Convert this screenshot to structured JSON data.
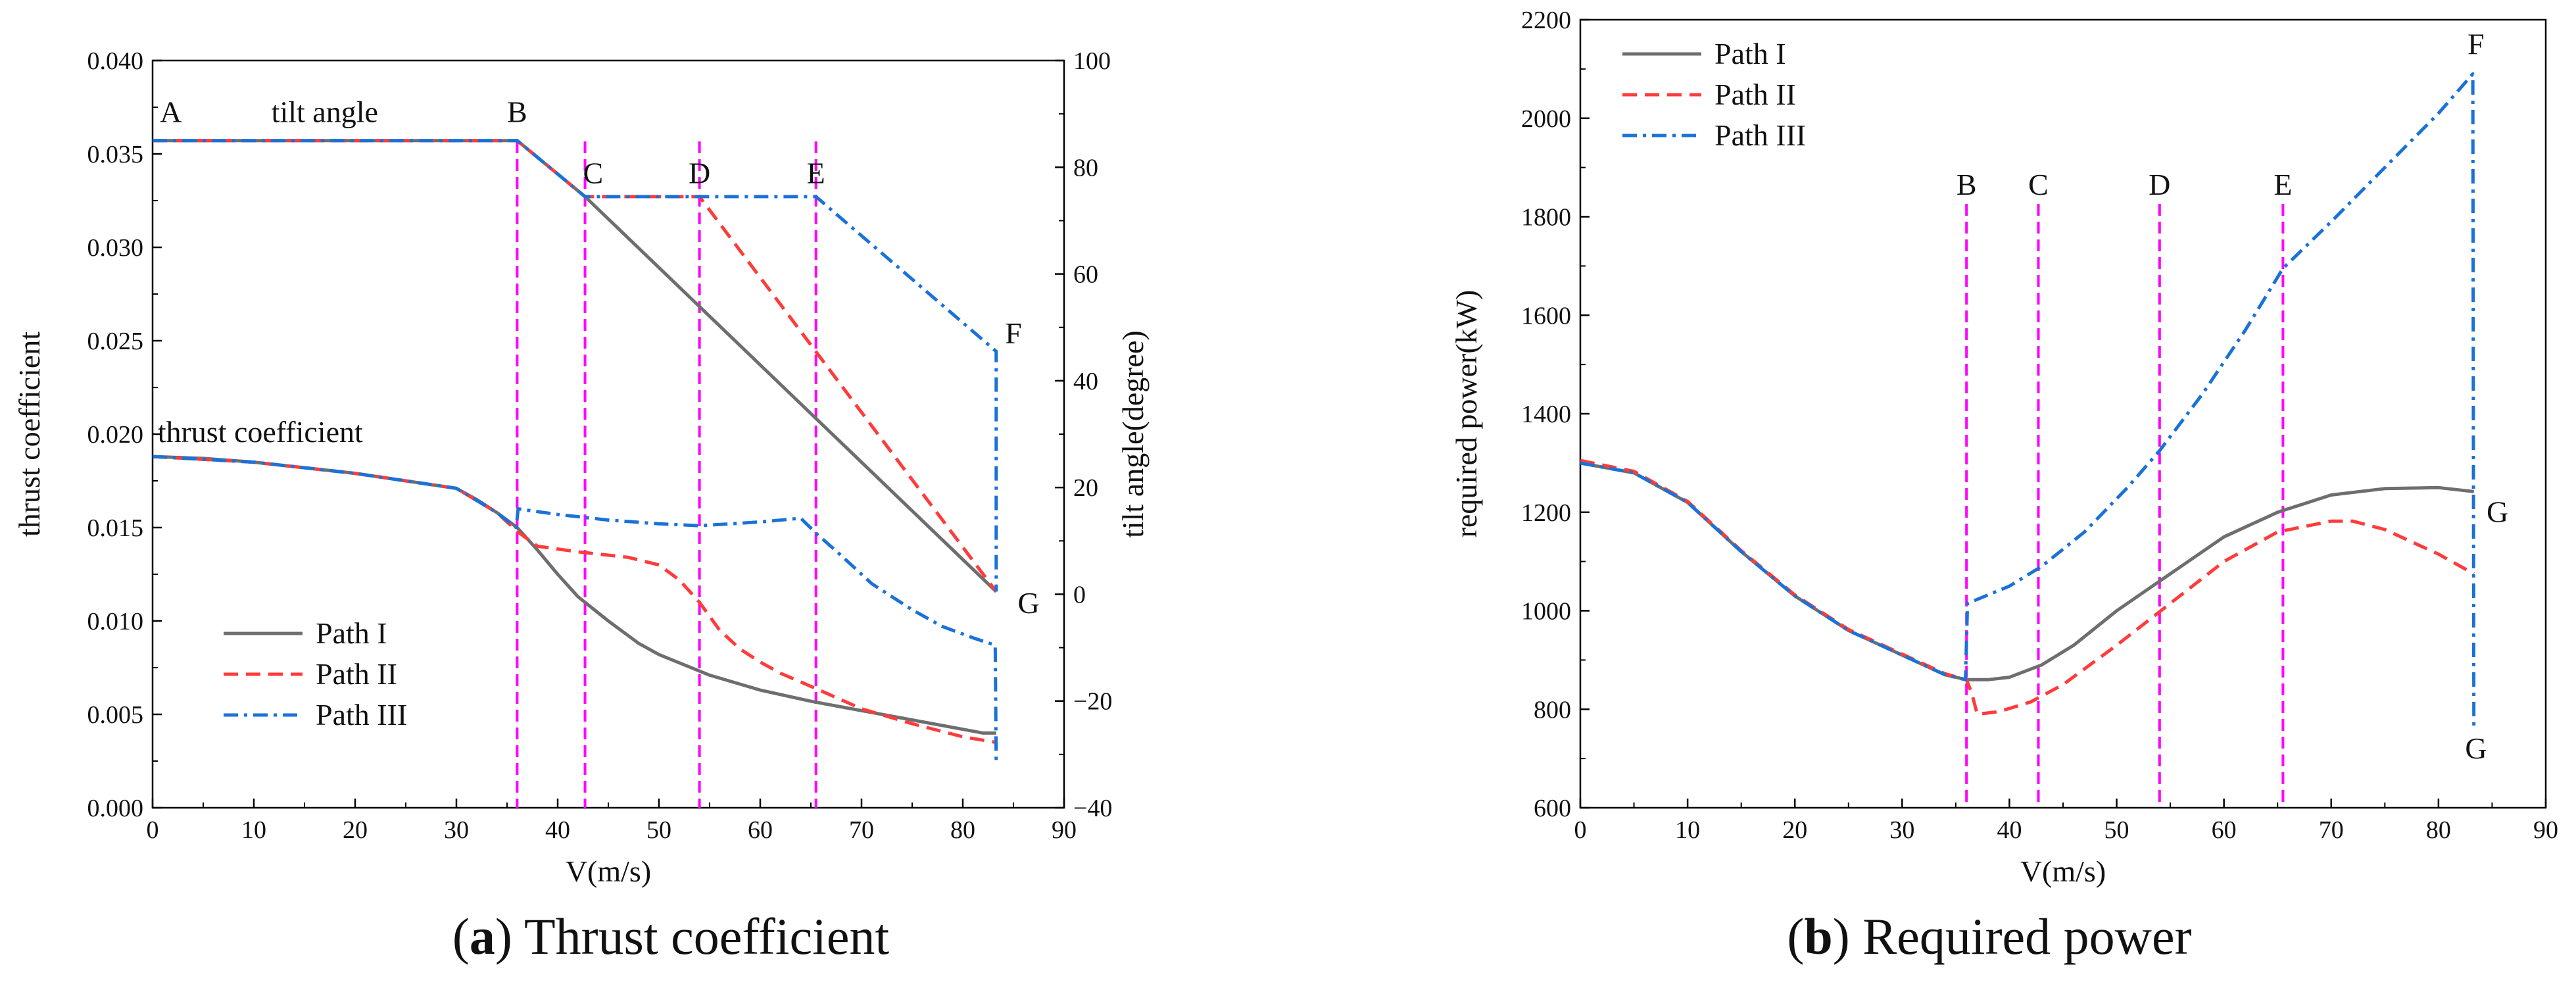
{
  "colors": {
    "path1": "#6e6e6e",
    "path2": "#ff3b3b",
    "path3": "#1a72d8",
    "marker_line": "#ff00ff",
    "axis": "#000000"
  },
  "chart_data": [
    {
      "type": "line",
      "caption_letter": "a",
      "caption_text": "Thrust coefficient",
      "xlabel": "V(m/s)",
      "ylabel": "thrust coefficient",
      "y2label": "tilt angle(degree)",
      "xlim": [
        0,
        90
      ],
      "ylim": [
        0,
        0.04
      ],
      "y2lim": [
        -40,
        100
      ],
      "xticks": [
        "0",
        "10",
        "20",
        "30",
        "40",
        "50",
        "60",
        "70",
        "80",
        "90"
      ],
      "yticks": [
        "0.000",
        "0.005",
        "0.010",
        "0.015",
        "0.020",
        "0.025",
        "0.030",
        "0.035",
        "0.040"
      ],
      "y2ticks": [
        "−40",
        "−20",
        "0",
        "20",
        "40",
        "60",
        "80",
        "100"
      ],
      "markers": [
        {
          "label": "B",
          "x": 36
        },
        {
          "label": "C",
          "x": 42.7
        },
        {
          "label": "D",
          "x": 54
        },
        {
          "label": "E",
          "x": 65.5
        }
      ],
      "annotations": [
        {
          "text": "A",
          "x": 1.8,
          "y2": 88.5,
          "anchor": "middle"
        },
        {
          "text": "tilt angle",
          "x": 17,
          "y2": 88.5,
          "anchor": "middle"
        },
        {
          "text": "B",
          "x": 36,
          "y2": 88.5,
          "anchor": "middle"
        },
        {
          "text": "C",
          "x": 43.5,
          "y2": 77,
          "anchor": "middle"
        },
        {
          "text": "D",
          "x": 54,
          "y2": 77,
          "anchor": "middle"
        },
        {
          "text": "E",
          "x": 65.5,
          "y2": 77,
          "anchor": "middle"
        },
        {
          "text": "F",
          "x": 85,
          "y2": 47,
          "anchor": "middle"
        },
        {
          "text": "G",
          "x": 86.5,
          "y2": -3.5,
          "anchor": "middle"
        },
        {
          "text": "thrust coefficient",
          "x": 0.5,
          "y2": 28.5,
          "anchor": "start"
        }
      ],
      "legend": [
        {
          "label": "Path I",
          "series": "path1"
        },
        {
          "label": "Path II",
          "series": "path2"
        },
        {
          "label": "Path III",
          "series": "path3"
        }
      ],
      "series": [
        {
          "name": "Path I",
          "kind": "thrust",
          "color_key": "path1",
          "dash": "solid",
          "points": [
            [
              0,
              0.0188
            ],
            [
              5,
              0.0187
            ],
            [
              10,
              0.0185
            ],
            [
              15,
              0.0182
            ],
            [
              20,
              0.0179
            ],
            [
              25,
              0.0175
            ],
            [
              30,
              0.0171
            ],
            [
              32,
              0.0165
            ],
            [
              34,
              0.0158
            ],
            [
              36,
              0.015
            ],
            [
              38,
              0.0138
            ],
            [
              40,
              0.0125
            ],
            [
              42,
              0.0113
            ],
            [
              45,
              0.01
            ],
            [
              48,
              0.0088
            ],
            [
              50,
              0.0082
            ],
            [
              55,
              0.0071
            ],
            [
              60,
              0.0063
            ],
            [
              65,
              0.0057
            ],
            [
              70,
              0.0052
            ],
            [
              75,
              0.0047
            ],
            [
              80,
              0.0042
            ],
            [
              82,
              0.004
            ],
            [
              83.3,
              0.004
            ]
          ]
        },
        {
          "name": "Path II",
          "kind": "thrust",
          "color_key": "path2",
          "dash": "dash",
          "points": [
            [
              0,
              0.0188
            ],
            [
              10,
              0.0185
            ],
            [
              20,
              0.0179
            ],
            [
              30,
              0.0171
            ],
            [
              34,
              0.0158
            ],
            [
              36,
              0.0148
            ],
            [
              38,
              0.014
            ],
            [
              42,
              0.0137
            ],
            [
              47,
              0.0134
            ],
            [
              50,
              0.013
            ],
            [
              52,
              0.0122
            ],
            [
              54,
              0.011
            ],
            [
              56,
              0.0095
            ],
            [
              58,
              0.0085
            ],
            [
              60,
              0.0078
            ],
            [
              62,
              0.0072
            ],
            [
              65,
              0.0065
            ],
            [
              70,
              0.0053
            ],
            [
              75,
              0.0045
            ],
            [
              80,
              0.0038
            ],
            [
              83.3,
              0.0035
            ]
          ]
        },
        {
          "name": "Path III",
          "kind": "thrust",
          "color_key": "path3",
          "dash": "dashdot",
          "points": [
            [
              0,
              0.0188
            ],
            [
              10,
              0.0185
            ],
            [
              20,
              0.0179
            ],
            [
              30,
              0.0171
            ],
            [
              34,
              0.0158
            ],
            [
              35.9,
              0.015
            ],
            [
              36.1,
              0.016
            ],
            [
              40,
              0.0157
            ],
            [
              45,
              0.0154
            ],
            [
              50,
              0.0152
            ],
            [
              54,
              0.0151
            ],
            [
              60,
              0.0153
            ],
            [
              64,
              0.0155
            ],
            [
              65.5,
              0.0147
            ],
            [
              68,
              0.0135
            ],
            [
              71,
              0.012
            ],
            [
              75,
              0.0106
            ],
            [
              78,
              0.0097
            ],
            [
              81,
              0.0091
            ],
            [
              83.2,
              0.0087
            ],
            [
              83.3,
              0.0023
            ]
          ]
        },
        {
          "name": "Path I",
          "kind": "tilt",
          "color_key": "path1",
          "dash": "solid",
          "points": [
            [
              0,
              85
            ],
            [
              36,
              85
            ],
            [
              42.7,
              74.5
            ],
            [
              83.3,
              0.5
            ]
          ]
        },
        {
          "name": "Path II",
          "kind": "tilt",
          "color_key": "path2",
          "dash": "dash",
          "points": [
            [
              0,
              85
            ],
            [
              36,
              85
            ],
            [
              42.7,
              74.5
            ],
            [
              54,
              74.5
            ],
            [
              83.3,
              0.5
            ]
          ]
        },
        {
          "name": "Path III",
          "kind": "tilt",
          "color_key": "path3",
          "dash": "dashdot",
          "points": [
            [
              0,
              85
            ],
            [
              36,
              85
            ],
            [
              42.7,
              74.5
            ],
            [
              65.5,
              74.5
            ],
            [
              83.3,
              45.5
            ],
            [
              83.3,
              0.5
            ]
          ]
        }
      ]
    },
    {
      "type": "line",
      "caption_letter": "b",
      "caption_text": "Required power",
      "xlabel": "V(m/s)",
      "ylabel": "required power(kW)",
      "xlim": [
        0,
        90
      ],
      "ylim": [
        600,
        2200
      ],
      "xticks": [
        "0",
        "10",
        "20",
        "30",
        "40",
        "50",
        "60",
        "70",
        "80",
        "90"
      ],
      "yticks": [
        "600",
        "800",
        "1000",
        "1200",
        "1400",
        "1600",
        "1800",
        "2000",
        "2200"
      ],
      "markers": [
        {
          "label": "B",
          "x": 36
        },
        {
          "label": "C",
          "x": 42.7
        },
        {
          "label": "D",
          "x": 54
        },
        {
          "label": "E",
          "x": 65.5
        }
      ],
      "annotations": [
        {
          "text": "F",
          "x": 83.5,
          "y": 2130,
          "anchor": "middle"
        },
        {
          "text": "G",
          "x": 85.5,
          "y": 1180,
          "anchor": "middle"
        },
        {
          "text": "G",
          "x": 83.5,
          "y": 700,
          "anchor": "middle"
        }
      ],
      "legend": [
        {
          "label": "Path I",
          "series": "path1"
        },
        {
          "label": "Path II",
          "series": "path2"
        },
        {
          "label": "Path III",
          "series": "path3"
        }
      ],
      "series": [
        {
          "name": "Path I",
          "color_key": "path1",
          "dash": "solid",
          "points": [
            [
              0,
              1300
            ],
            [
              5,
              1280
            ],
            [
              10,
              1220
            ],
            [
              15,
              1120
            ],
            [
              20,
              1030
            ],
            [
              25,
              960
            ],
            [
              30,
              910
            ],
            [
              34,
              870
            ],
            [
              36,
              860
            ],
            [
              38,
              860
            ],
            [
              40,
              865
            ],
            [
              43,
              890
            ],
            [
              46,
              930
            ],
            [
              50,
              1000
            ],
            [
              55,
              1075
            ],
            [
              60,
              1150
            ],
            [
              65,
              1200
            ],
            [
              70,
              1235
            ],
            [
              75,
              1248
            ],
            [
              80,
              1250
            ],
            [
              83.3,
              1242
            ]
          ]
        },
        {
          "name": "Path II",
          "color_key": "path2",
          "dash": "dash",
          "points": [
            [
              0,
              1305
            ],
            [
              5,
              1283
            ],
            [
              10,
              1222
            ],
            [
              15,
              1122
            ],
            [
              20,
              1032
            ],
            [
              25,
              962
            ],
            [
              30,
              912
            ],
            [
              34,
              872
            ],
            [
              36,
              860
            ],
            [
              36.5,
              832
            ],
            [
              37,
              790
            ],
            [
              39,
              795
            ],
            [
              42,
              815
            ],
            [
              45,
              850
            ],
            [
              50,
              930
            ],
            [
              55,
              1015
            ],
            [
              60,
              1100
            ],
            [
              65,
              1160
            ],
            [
              70,
              1182
            ],
            [
              72,
              1182
            ],
            [
              75,
              1165
            ],
            [
              80,
              1115
            ],
            [
              83.3,
              1075
            ]
          ]
        },
        {
          "name": "Path III",
          "color_key": "path3",
          "dash": "dashdot",
          "points": [
            [
              0,
              1300
            ],
            [
              5,
              1280
            ],
            [
              10,
              1220
            ],
            [
              15,
              1120
            ],
            [
              20,
              1030
            ],
            [
              25,
              960
            ],
            [
              30,
              910
            ],
            [
              34,
              870
            ],
            [
              35.9,
              860
            ],
            [
              36.1,
              1015
            ],
            [
              40,
              1050
            ],
            [
              43,
              1090
            ],
            [
              47,
              1160
            ],
            [
              51,
              1250
            ],
            [
              54,
              1325
            ],
            [
              58,
              1440
            ],
            [
              62,
              1570
            ],
            [
              65.5,
              1695
            ],
            [
              70,
              1790
            ],
            [
              75,
              1900
            ],
            [
              80,
              2010
            ],
            [
              83.2,
              2090
            ],
            [
              83.3,
              760
            ]
          ]
        }
      ]
    }
  ]
}
